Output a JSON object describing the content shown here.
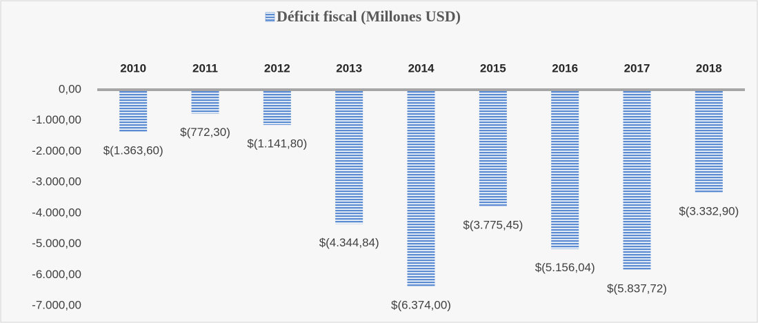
{
  "chart_data": {
    "type": "bar",
    "categories": [
      "2010",
      "2011",
      "2012",
      "2013",
      "2014",
      "2015",
      "2016",
      "2017",
      "2018"
    ],
    "series": [
      {
        "name": "Déficit fiscal (Millones USD)",
        "color": "#5b8bd0",
        "values": [
          -1363.6,
          -772.3,
          -1141.8,
          -4344.84,
          -6374.0,
          -3775.45,
          -5156.04,
          -5837.72,
          -3332.9
        ],
        "value_labels": [
          "$(1.363,60)",
          "$(772,30)",
          "$(1.141,80)",
          "$(4.344,84)",
          "$(6.374,00)",
          "$(3.775,45)",
          "$(5.156,04)",
          "$(5.837,72)",
          "$(3.332,90)"
        ]
      }
    ],
    "ylim": [
      -7000,
      0
    ],
    "yticks": [
      {
        "value": 0,
        "label": "0,00"
      },
      {
        "value": -1000,
        "label": "-1.000,00"
      },
      {
        "value": -2000,
        "label": "-2.000,00"
      },
      {
        "value": -3000,
        "label": "-3.000,00"
      },
      {
        "value": -4000,
        "label": "-4.000,00"
      },
      {
        "value": -5000,
        "label": "-5.000,00"
      },
      {
        "value": -6000,
        "label": "-6.000,00"
      },
      {
        "value": -7000,
        "label": "-7.000,00"
      }
    ],
    "legend": "top"
  }
}
